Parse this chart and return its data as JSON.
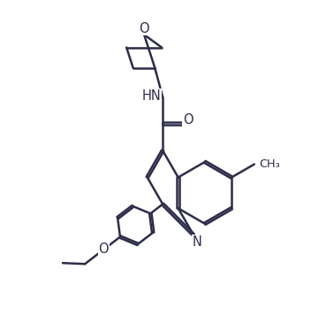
{
  "bg_color": "#ffffff",
  "line_color": "#2d2d4a",
  "line_width": 1.8,
  "font_size": 10.5,
  "figsize": [
    3.52,
    3.74
  ],
  "dpi": 100,
  "xlim": [
    0,
    10
  ],
  "ylim": [
    0,
    10.6
  ]
}
